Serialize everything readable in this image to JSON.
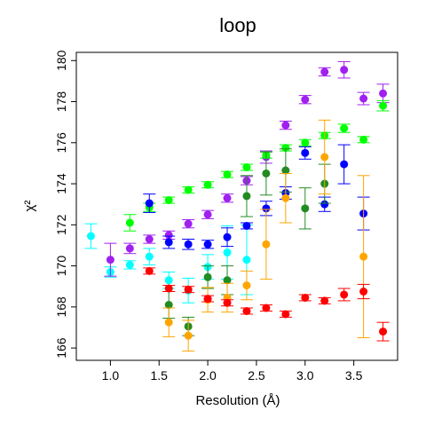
{
  "chart_data": {
    "type": "scatter",
    "title": "loop",
    "xlabel": "Resolution (Å)",
    "ylabel": "χ²",
    "xlim": [
      0.65,
      3.95
    ],
    "ylim": [
      165.4,
      180.4
    ],
    "x_ticks": [
      1.0,
      1.5,
      2.0,
      2.5,
      3.0,
      3.5
    ],
    "x_tick_labels": [
      "1.0",
      "1.5",
      "2.0",
      "2.5",
      "3.0",
      "3.5"
    ],
    "y_ticks": [
      166,
      168,
      170,
      172,
      174,
      176,
      178,
      180
    ],
    "y_tick_labels": [
      "166",
      "168",
      "170",
      "172",
      "174",
      "176",
      "178",
      "180"
    ],
    "grid": false,
    "legend": "none",
    "series": [
      {
        "color": "#00ffff",
        "points": [
          {
            "x": 0.8,
            "y": 171.45,
            "lo": 170.85,
            "hi": 172.05
          },
          {
            "x": 1.0,
            "y": 169.7,
            "lo": 169.45,
            "hi": 169.95
          },
          {
            "x": 1.2,
            "y": 170.05,
            "lo": 169.85,
            "hi": 170.25
          },
          {
            "x": 1.4,
            "y": 170.45,
            "lo": 170.05,
            "hi": 170.85
          },
          {
            "x": 1.6,
            "y": 169.3,
            "lo": 168.9,
            "hi": 169.7
          },
          {
            "x": 1.8,
            "y": 168.8,
            "lo": 168.2,
            "hi": 169.4
          },
          {
            "x": 2.0,
            "y": 169.95,
            "lo": 169.35,
            "hi": 170.55
          },
          {
            "x": 2.2,
            "y": 170.65,
            "lo": 169.35,
            "hi": 171.95
          },
          {
            "x": 2.4,
            "y": 170.3,
            "lo": 168.6,
            "hi": 172.0
          }
        ]
      },
      {
        "color": "#a020f0",
        "points": [
          {
            "x": 1.0,
            "y": 170.3,
            "lo": 169.5,
            "hi": 171.1
          },
          {
            "x": 1.2,
            "y": 170.85,
            "lo": 170.6,
            "hi": 171.1
          },
          {
            "x": 1.4,
            "y": 171.3,
            "lo": 171.1,
            "hi": 171.5
          },
          {
            "x": 1.6,
            "y": 171.5,
            "lo": 171.3,
            "hi": 171.7
          },
          {
            "x": 1.8,
            "y": 172.05,
            "lo": 171.85,
            "hi": 172.25
          },
          {
            "x": 2.0,
            "y": 172.5,
            "lo": 172.3,
            "hi": 172.7
          },
          {
            "x": 2.2,
            "y": 173.3,
            "lo": 173.1,
            "hi": 173.5
          },
          {
            "x": 2.4,
            "y": 174.15,
            "lo": 173.95,
            "hi": 174.35
          },
          {
            "x": 2.6,
            "y": 175.3,
            "lo": 175.0,
            "hi": 175.6
          },
          {
            "x": 2.8,
            "y": 176.85,
            "lo": 176.65,
            "hi": 177.05
          },
          {
            "x": 3.0,
            "y": 178.1,
            "lo": 177.9,
            "hi": 178.3
          },
          {
            "x": 3.2,
            "y": 179.45,
            "lo": 179.25,
            "hi": 179.65
          },
          {
            "x": 3.4,
            "y": 179.55,
            "lo": 179.15,
            "hi": 179.95
          },
          {
            "x": 3.6,
            "y": 178.15,
            "lo": 177.85,
            "hi": 178.45
          },
          {
            "x": 3.8,
            "y": 178.4,
            "lo": 177.95,
            "hi": 178.85
          }
        ]
      },
      {
        "color": "#00ff00",
        "points": [
          {
            "x": 1.2,
            "y": 172.1,
            "lo": 171.7,
            "hi": 172.5
          },
          {
            "x": 1.4,
            "y": 172.85,
            "lo": 172.65,
            "hi": 173.05
          },
          {
            "x": 1.6,
            "y": 173.2,
            "lo": 173.05,
            "hi": 173.35
          },
          {
            "x": 1.8,
            "y": 173.7,
            "lo": 173.55,
            "hi": 173.85
          },
          {
            "x": 2.0,
            "y": 173.95,
            "lo": 173.8,
            "hi": 174.1
          },
          {
            "x": 2.2,
            "y": 174.45,
            "lo": 174.3,
            "hi": 174.6
          },
          {
            "x": 2.4,
            "y": 174.8,
            "lo": 174.65,
            "hi": 174.95
          },
          {
            "x": 2.6,
            "y": 175.4,
            "lo": 175.25,
            "hi": 175.55
          },
          {
            "x": 2.8,
            "y": 175.75,
            "lo": 175.6,
            "hi": 175.9
          },
          {
            "x": 3.0,
            "y": 176.0,
            "lo": 175.85,
            "hi": 176.15
          },
          {
            "x": 3.2,
            "y": 176.35,
            "lo": 176.2,
            "hi": 176.5
          },
          {
            "x": 3.4,
            "y": 176.7,
            "lo": 176.5,
            "hi": 176.9
          },
          {
            "x": 3.6,
            "y": 176.15,
            "lo": 176.0,
            "hi": 176.3
          },
          {
            "x": 3.8,
            "y": 177.8,
            "lo": 177.55,
            "hi": 178.05
          }
        ]
      },
      {
        "color": "#0000ff",
        "points": [
          {
            "x": 1.4,
            "y": 173.05,
            "lo": 172.6,
            "hi": 173.5
          },
          {
            "x": 1.6,
            "y": 171.15,
            "lo": 170.85,
            "hi": 171.45
          },
          {
            "x": 1.8,
            "y": 171.05,
            "lo": 170.8,
            "hi": 171.3
          },
          {
            "x": 2.0,
            "y": 171.05,
            "lo": 170.85,
            "hi": 171.25
          },
          {
            "x": 2.2,
            "y": 171.4,
            "lo": 170.95,
            "hi": 171.85
          },
          {
            "x": 2.4,
            "y": 171.95,
            "lo": 171.8,
            "hi": 172.1
          },
          {
            "x": 2.6,
            "y": 172.8,
            "lo": 172.45,
            "hi": 173.15
          },
          {
            "x": 2.8,
            "y": 173.55,
            "lo": 173.25,
            "hi": 173.85
          },
          {
            "x": 3.0,
            "y": 175.5,
            "lo": 175.2,
            "hi": 175.8
          },
          {
            "x": 3.2,
            "y": 173.0,
            "lo": 172.65,
            "hi": 173.35
          },
          {
            "x": 3.4,
            "y": 174.95,
            "lo": 174.0,
            "hi": 175.9
          },
          {
            "x": 3.6,
            "y": 172.55,
            "lo": 171.75,
            "hi": 173.35
          }
        ]
      },
      {
        "color": "#228b22",
        "points": [
          {
            "x": 1.6,
            "y": 168.1,
            "lo": 167.45,
            "hi": 168.75
          },
          {
            "x": 1.8,
            "y": 167.05,
            "lo": 166.6,
            "hi": 167.5
          },
          {
            "x": 2.0,
            "y": 169.45,
            "lo": 168.9,
            "hi": 170.0
          },
          {
            "x": 2.2,
            "y": 169.3,
            "lo": 168.6,
            "hi": 170.0
          },
          {
            "x": 2.4,
            "y": 173.4,
            "lo": 172.4,
            "hi": 174.4
          },
          {
            "x": 2.6,
            "y": 174.5,
            "lo": 173.45,
            "hi": 175.55
          },
          {
            "x": 2.8,
            "y": 174.65,
            "lo": 173.6,
            "hi": 175.7
          },
          {
            "x": 3.0,
            "y": 172.8,
            "lo": 171.8,
            "hi": 173.8
          },
          {
            "x": 3.2,
            "y": 174.0,
            "lo": 173.05,
            "hi": 174.95
          }
        ]
      },
      {
        "color": "#ffa500",
        "points": [
          {
            "x": 1.6,
            "y": 167.25,
            "lo": 166.55,
            "hi": 167.95
          },
          {
            "x": 1.8,
            "y": 166.6,
            "lo": 165.85,
            "hi": 167.35
          },
          {
            "x": 2.0,
            "y": 168.35,
            "lo": 167.75,
            "hi": 168.95
          },
          {
            "x": 2.2,
            "y": 168.45,
            "lo": 167.75,
            "hi": 169.15
          },
          {
            "x": 2.4,
            "y": 169.05,
            "lo": 168.35,
            "hi": 169.75
          },
          {
            "x": 2.6,
            "y": 171.05,
            "lo": 169.35,
            "hi": 172.75
          },
          {
            "x": 2.8,
            "y": 173.3,
            "lo": 172.1,
            "hi": 174.5
          },
          {
            "x": 3.2,
            "y": 175.3,
            "lo": 173.5,
            "hi": 177.1
          },
          {
            "x": 3.6,
            "y": 170.45,
            "lo": 166.5,
            "hi": 174.4
          }
        ]
      },
      {
        "color": "#ff0000",
        "points": [
          {
            "x": 1.4,
            "y": 169.75,
            "lo": 169.6,
            "hi": 169.9
          },
          {
            "x": 1.6,
            "y": 168.9,
            "lo": 168.75,
            "hi": 169.05
          },
          {
            "x": 1.8,
            "y": 168.85,
            "lo": 168.7,
            "hi": 169.0
          },
          {
            "x": 2.0,
            "y": 168.4,
            "lo": 168.25,
            "hi": 168.55
          },
          {
            "x": 2.2,
            "y": 168.2,
            "lo": 168.05,
            "hi": 168.35
          },
          {
            "x": 2.4,
            "y": 167.8,
            "lo": 167.65,
            "hi": 167.95
          },
          {
            "x": 2.6,
            "y": 167.95,
            "lo": 167.8,
            "hi": 168.1
          },
          {
            "x": 2.8,
            "y": 167.65,
            "lo": 167.5,
            "hi": 167.8
          },
          {
            "x": 3.0,
            "y": 168.45,
            "lo": 168.3,
            "hi": 168.6
          },
          {
            "x": 3.2,
            "y": 168.3,
            "lo": 168.15,
            "hi": 168.45
          },
          {
            "x": 3.4,
            "y": 168.6,
            "lo": 168.3,
            "hi": 168.9
          },
          {
            "x": 3.6,
            "y": 168.75,
            "lo": 168.4,
            "hi": 169.1
          },
          {
            "x": 3.8,
            "y": 166.8,
            "lo": 166.35,
            "hi": 167.25
          }
        ]
      }
    ]
  }
}
